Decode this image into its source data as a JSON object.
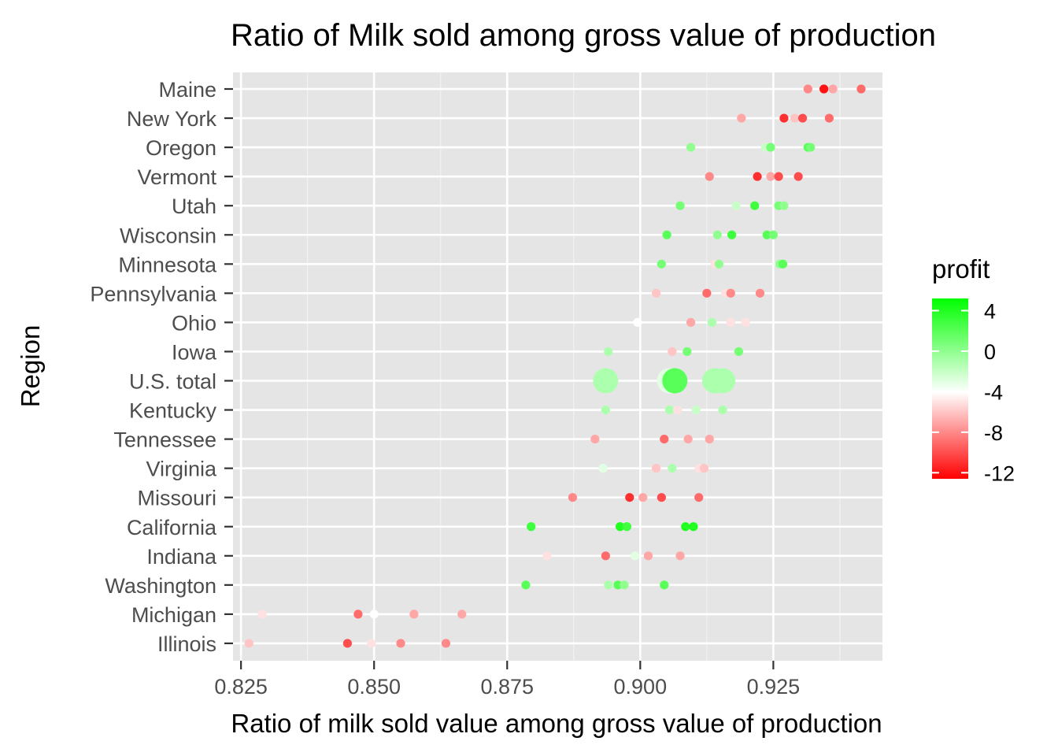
{
  "chart_data": {
    "type": "scatter",
    "title": "Ratio of Milk sold among gross value of production",
    "xlabel": "Ratio of milk sold value among gross value of production",
    "ylabel": "Region",
    "xlim": [
      0.8235,
      0.9455
    ],
    "x_ticks": [
      "0.825",
      "0.850",
      "0.875",
      "0.900",
      "0.925"
    ],
    "x_tick_values": [
      0.825,
      0.85,
      0.875,
      0.9,
      0.925
    ],
    "categories": [
      "Maine",
      "New York",
      "Oregon",
      "Vermont",
      "Utah",
      "Wisconsin",
      "Minnesota",
      "Pennsylvania",
      "Ohio",
      "Iowa",
      "U.S. total",
      "Kentucky",
      "Tennessee",
      "Virginia",
      "Missouri",
      "California",
      "Indiana",
      "Washington",
      "Michigan",
      "Illinois"
    ],
    "grid": true,
    "panel_background": "#e5e5e5",
    "legend": {
      "title": "profit",
      "position": "right",
      "labels": [
        "4",
        "0",
        "-4",
        "-8",
        "-12"
      ],
      "label_values": [
        4,
        0,
        -4,
        -8,
        -12
      ],
      "range": [
        -12.6,
        5.2
      ],
      "colors": {
        "low": "#ff0000",
        "mid": "#ffffff",
        "high": "#00ff00",
        "midpoint": -4
      }
    },
    "series": [
      {
        "region": "Maine",
        "points": [
          [
            0.9315,
            -8
          ],
          [
            0.9345,
            -12
          ],
          [
            0.9362,
            -7
          ],
          [
            0.9415,
            -9
          ]
        ]
      },
      {
        "region": "New York",
        "points": [
          [
            0.919,
            -7
          ],
          [
            0.927,
            -11
          ],
          [
            0.929,
            -6
          ],
          [
            0.9305,
            -10
          ],
          [
            0.9355,
            -9
          ]
        ]
      },
      {
        "region": "Oregon",
        "points": [
          [
            0.9095,
            0
          ],
          [
            0.9235,
            -2
          ],
          [
            0.9245,
            1
          ],
          [
            0.9315,
            2
          ],
          [
            0.932,
            1
          ]
        ]
      },
      {
        "region": "Vermont",
        "points": [
          [
            0.913,
            -8
          ],
          [
            0.922,
            -11
          ],
          [
            0.9245,
            -7
          ],
          [
            0.926,
            -10
          ],
          [
            0.9297,
            -10
          ]
        ]
      },
      {
        "region": "Utah",
        "points": [
          [
            0.9075,
            1
          ],
          [
            0.918,
            -2
          ],
          [
            0.9215,
            3
          ],
          [
            0.926,
            1
          ],
          [
            0.927,
            0
          ]
        ]
      },
      {
        "region": "Wisconsin",
        "points": [
          [
            0.905,
            2
          ],
          [
            0.9145,
            0
          ],
          [
            0.9172,
            3
          ],
          [
            0.9238,
            2
          ],
          [
            0.925,
            1
          ]
        ]
      },
      {
        "region": "Minnesota",
        "points": [
          [
            0.904,
            1
          ],
          [
            0.914,
            -5
          ],
          [
            0.9148,
            0
          ],
          [
            0.9262,
            0
          ],
          [
            0.9268,
            2
          ]
        ]
      },
      {
        "region": "Pennsylvania",
        "points": [
          [
            0.903,
            -6
          ],
          [
            0.9125,
            -9
          ],
          [
            0.916,
            -5
          ],
          [
            0.917,
            -8
          ],
          [
            0.9225,
            -8
          ]
        ]
      },
      {
        "region": "Ohio",
        "points": [
          [
            0.8995,
            -4
          ],
          [
            0.9095,
            -7
          ],
          [
            0.9135,
            -1
          ],
          [
            0.917,
            -5
          ],
          [
            0.9198,
            -5
          ]
        ]
      },
      {
        "region": "Iowa",
        "points": [
          [
            0.894,
            -1
          ],
          [
            0.906,
            -6
          ],
          [
            0.9088,
            1
          ],
          [
            0.9185,
            1
          ]
        ]
      },
      {
        "region": "U.S. total",
        "points": [
          [
            0.8935,
            -1,
            "big"
          ],
          [
            0.9055,
            -3,
            "big"
          ],
          [
            0.9065,
            2,
            "big"
          ],
          [
            0.914,
            -1,
            "big"
          ],
          [
            0.9155,
            -1,
            "big"
          ]
        ]
      },
      {
        "region": "Kentucky",
        "points": [
          [
            0.8935,
            -1
          ],
          [
            0.9055,
            -1
          ],
          [
            0.907,
            -5
          ],
          [
            0.9105,
            -2
          ],
          [
            0.9155,
            -1
          ]
        ]
      },
      {
        "region": "Tennessee",
        "points": [
          [
            0.8915,
            -7
          ],
          [
            0.9045,
            -9
          ],
          [
            0.909,
            -7
          ],
          [
            0.913,
            -7
          ]
        ]
      },
      {
        "region": "Virginia",
        "points": [
          [
            0.893,
            -3
          ],
          [
            0.903,
            -6
          ],
          [
            0.906,
            -1
          ],
          [
            0.911,
            -5
          ],
          [
            0.912,
            -6
          ]
        ]
      },
      {
        "region": "Missouri",
        "points": [
          [
            0.8873,
            -8
          ],
          [
            0.898,
            -11
          ],
          [
            0.9005,
            -7
          ],
          [
            0.904,
            -10
          ],
          [
            0.911,
            -9
          ]
        ]
      },
      {
        "region": "California",
        "points": [
          [
            0.8795,
            3
          ],
          [
            0.8962,
            4
          ],
          [
            0.8975,
            3
          ],
          [
            0.9085,
            4
          ],
          [
            0.91,
            4
          ]
        ]
      },
      {
        "region": "Indiana",
        "points": [
          [
            0.8825,
            -5
          ],
          [
            0.8935,
            -9
          ],
          [
            0.899,
            -3
          ],
          [
            0.9015,
            -7
          ],
          [
            0.9075,
            -7
          ]
        ]
      },
      {
        "region": "Washington",
        "points": [
          [
            0.8785,
            2
          ],
          [
            0.894,
            -1
          ],
          [
            0.8958,
            2
          ],
          [
            0.897,
            0
          ],
          [
            0.9045,
            2
          ]
        ]
      },
      {
        "region": "Michigan",
        "points": [
          [
            0.829,
            -5
          ],
          [
            0.847,
            -9
          ],
          [
            0.85,
            -4
          ],
          [
            0.8575,
            -7
          ],
          [
            0.8665,
            -7
          ]
        ]
      },
      {
        "region": "Illinois",
        "points": [
          [
            0.8265,
            -6
          ],
          [
            0.845,
            -10
          ],
          [
            0.8495,
            -5
          ],
          [
            0.855,
            -8
          ],
          [
            0.8635,
            -8
          ]
        ]
      }
    ]
  }
}
